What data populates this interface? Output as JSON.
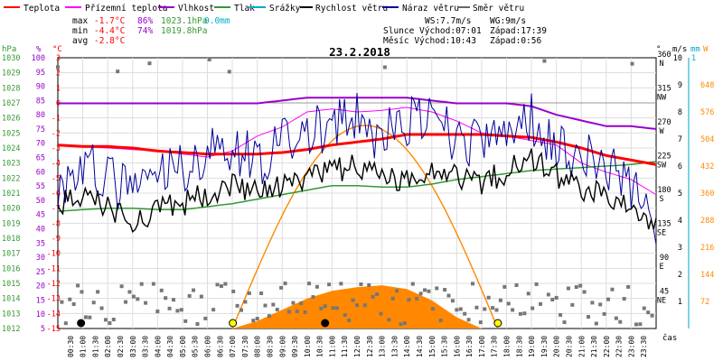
{
  "title": "23.2.2018",
  "legend": [
    {
      "label": "Teplota",
      "color": "#ff0000"
    },
    {
      "label": "Přízemní teplota",
      "color": "#ff00ff"
    },
    {
      "label": "Vlhkost",
      "color": "#9900cc"
    },
    {
      "label": "Tlak",
      "color": "#339933"
    },
    {
      "label": "Srážky",
      "color": "#00aacc"
    },
    {
      "label": "Rychlost větru",
      "color": "#000000"
    },
    {
      "label": "Náraz větru",
      "color": "#000099"
    },
    {
      "label": "Směr větru",
      "color": "#666666"
    }
  ],
  "stats": {
    "max": {
      "label": "max",
      "temp": "-1.7°C",
      "hum": "86%",
      "press": "1023.1hPa",
      "rain": "0.0mm"
    },
    "min": {
      "label": "min",
      "temp": "-4.4°C",
      "hum": "74%",
      "press": "1019.8hPa"
    },
    "avg": {
      "label": "avg",
      "temp": "-2.8°C"
    }
  },
  "wind_info": {
    "ws": "WS:7.7m/s",
    "wg": "WG:9m/s"
  },
  "sun": {
    "rise": "Slunce Východ:07:01",
    "set": "Západ:17:39"
  },
  "moon": {
    "rise": "Měsíc  Východ:10:43",
    "set": "Západ:0:56"
  },
  "axis_titles": {
    "hpa": "hPa",
    "pct": "%",
    "degc": "°C",
    "deg": "°",
    "ms": "m/s",
    "mm": "mm",
    "wm2": "W",
    "time": "čas"
  },
  "axes": {
    "hpa": [
      "1030",
      "1029",
      "1028",
      "1027",
      "1026",
      "1025",
      "1024",
      "1023",
      "1022",
      "1021",
      "1020",
      "1019",
      "1018",
      "1017",
      "1016",
      "1015",
      "1014",
      "1013",
      "1012"
    ],
    "pct": [
      "100",
      "95",
      "90",
      "85",
      "80",
      "75",
      "70",
      "65",
      "60",
      "55",
      "50",
      "45",
      "40",
      "35",
      "30",
      "25",
      "20",
      "15",
      "10",
      "5"
    ],
    "degc": [
      "3",
      "2",
      "1",
      "0",
      "-1",
      "-2",
      "-3",
      "-4",
      "-5",
      "-6",
      "-7",
      "-8",
      "-9",
      "-10",
      "-11",
      "-12",
      "-13",
      "-14",
      "-15"
    ],
    "dir": [
      {
        "deg": "360",
        "dir": "N"
      },
      {
        "deg": "315",
        "dir": "NW"
      },
      {
        "deg": "270",
        "dir": "W"
      },
      {
        "deg": "225",
        "dir": "SW"
      },
      {
        "deg": "180",
        "dir": "S"
      },
      {
        "deg": "135",
        "dir": "SE"
      },
      {
        "deg": "90",
        "dir": "E"
      },
      {
        "deg": "45",
        "dir": "NE"
      }
    ],
    "ms": [
      "10",
      "9",
      "8",
      "7",
      "6",
      "5",
      "4",
      "3",
      "2",
      "1"
    ],
    "mm": [
      "1"
    ],
    "wm2": [
      "648",
      "576",
      "504",
      "432",
      "360",
      "288",
      "216",
      "144",
      "72"
    ],
    "time": [
      "00:30",
      "01:00",
      "01:30",
      "02:00",
      "02:30",
      "03:00",
      "03:30",
      "04:00",
      "04:30",
      "05:00",
      "05:30",
      "06:00",
      "06:30",
      "07:00",
      "07:30",
      "08:00",
      "08:30",
      "09:00",
      "09:30",
      "10:00",
      "10:30",
      "11:00",
      "11:30",
      "12:00",
      "12:30",
      "13:00",
      "13:30",
      "14:00",
      "14:30",
      "15:00",
      "15:30",
      "16:00",
      "16:30",
      "17:00",
      "17:30",
      "18:00",
      "18:30",
      "19:00",
      "19:30",
      "20:00",
      "20:30",
      "21:00",
      "21:30",
      "22:00",
      "22:30",
      "23:00",
      "23:30"
    ]
  },
  "chart_data": {
    "type": "line",
    "title": "23.2.2018",
    "xlabel": "čas",
    "x_range": [
      "00:00",
      "24:00"
    ],
    "series": [
      {
        "name": "Teplota",
        "unit": "°C",
        "color": "#ff0000",
        "x": [
          0,
          1,
          2,
          3,
          4,
          5,
          6,
          7,
          8,
          9,
          10,
          11,
          12,
          13,
          14,
          15,
          16,
          17,
          18,
          19,
          20,
          21,
          22,
          23,
          24
        ],
        "y": [
          -2.8,
          -2.9,
          -2.9,
          -3.0,
          -3.2,
          -3.3,
          -3.4,
          -3.4,
          -3.4,
          -3.3,
          -3.1,
          -2.8,
          -2.6,
          -2.4,
          -2.1,
          -2.1,
          -2.1,
          -2.1,
          -2.2,
          -2.3,
          -2.6,
          -3.0,
          -3.5,
          -3.8,
          -4.1
        ]
      },
      {
        "name": "Přízemní teplota",
        "unit": "°C",
        "color": "#ff00ff",
        "x": [
          0,
          1,
          2,
          3,
          4,
          5,
          6,
          7,
          8,
          9,
          10,
          11,
          12,
          13,
          14,
          15,
          16,
          17,
          18,
          19,
          20,
          21,
          22,
          23,
          24
        ],
        "y": [
          -2.8,
          -2.9,
          -3.0,
          -3.1,
          -3.2,
          -3.4,
          -3.6,
          -3.2,
          -2.2,
          -1.6,
          -0.6,
          -0.4,
          -0.6,
          -0.5,
          -0.3,
          -0.6,
          -1.2,
          -2.0,
          -2.2,
          -2.5,
          -2.8,
          -4.0,
          -4.6,
          -5.1,
          -6.1
        ]
      },
      {
        "name": "Vlhkost",
        "unit": "%",
        "color": "#9900cc",
        "x": [
          0,
          1,
          2,
          3,
          4,
          5,
          6,
          7,
          8,
          9,
          10,
          11,
          12,
          13,
          14,
          15,
          16,
          17,
          18,
          19,
          20,
          21,
          22,
          23,
          24
        ],
        "y": [
          84,
          84,
          84,
          84,
          84,
          84,
          84,
          84,
          84,
          85,
          86,
          86,
          86,
          86,
          86,
          85,
          84,
          84,
          84,
          83,
          80,
          78,
          76,
          76,
          75
        ]
      },
      {
        "name": "Tlak",
        "unit": "hPa",
        "color": "#339933",
        "x": [
          0,
          1,
          2,
          3,
          4,
          5,
          6,
          7,
          8,
          9,
          10,
          11,
          12,
          13,
          14,
          15,
          16,
          17,
          18,
          19,
          20,
          21,
          22,
          23,
          24
        ],
        "y": [
          1019.8,
          1019.9,
          1020.0,
          1020.0,
          1019.9,
          1019.9,
          1020.1,
          1020.3,
          1020.6,
          1020.9,
          1021.2,
          1021.5,
          1021.5,
          1021.4,
          1021.4,
          1021.6,
          1021.9,
          1022.1,
          1022.3,
          1022.5,
          1022.6,
          1022.7,
          1022.8,
          1022.9,
          1023.1
        ]
      },
      {
        "name": "Rychlost větru",
        "unit": "m/s",
        "color": "#000000",
        "x": [
          0,
          1,
          2,
          3,
          4,
          5,
          6,
          7,
          8,
          9,
          10,
          11,
          12,
          13,
          14,
          15,
          16,
          17,
          18,
          19,
          20,
          21,
          22,
          23,
          24
        ],
        "y": [
          4.6,
          4.8,
          4.5,
          4.0,
          4.3,
          4.6,
          5.0,
          5.4,
          5.0,
          5.2,
          5.5,
          5.8,
          6.0,
          5.6,
          5.4,
          6.0,
          5.7,
          5.4,
          5.8,
          6.4,
          5.6,
          5.2,
          4.9,
          4.4,
          3.6
        ]
      },
      {
        "name": "Náraz větru",
        "unit": "m/s",
        "color": "#000099",
        "x": [
          0,
          1,
          2,
          3,
          4,
          5,
          6,
          7,
          8,
          9,
          10,
          11,
          12,
          13,
          14,
          15,
          16,
          17,
          18,
          19,
          20,
          21,
          22,
          23,
          24
        ],
        "y": [
          5.2,
          6.0,
          5.5,
          5.0,
          5.6,
          6.0,
          6.4,
          6.8,
          6.2,
          6.8,
          7.2,
          7.4,
          7.7,
          7.0,
          7.6,
          7.6,
          7.0,
          6.8,
          7.2,
          7.8,
          6.8,
          6.4,
          6.0,
          5.2,
          4.0
        ]
      }
    ],
    "solar_w": {
      "x": [
        7,
        8,
        9,
        10,
        11,
        12,
        13,
        14,
        15,
        16,
        17
      ],
      "y": [
        0,
        20,
        50,
        80,
        100,
        110,
        115,
        105,
        75,
        30,
        0
      ]
    },
    "sun_elevation": {
      "rise": 7.0,
      "set": 17.65,
      "peak_w": 540
    },
    "markers": [
      {
        "type": "moonset",
        "hour": 0.93
      },
      {
        "type": "sunrise",
        "hour": 7.02
      },
      {
        "type": "moonrise",
        "hour": 10.72
      },
      {
        "type": "sunset",
        "hour": 17.65
      }
    ]
  }
}
